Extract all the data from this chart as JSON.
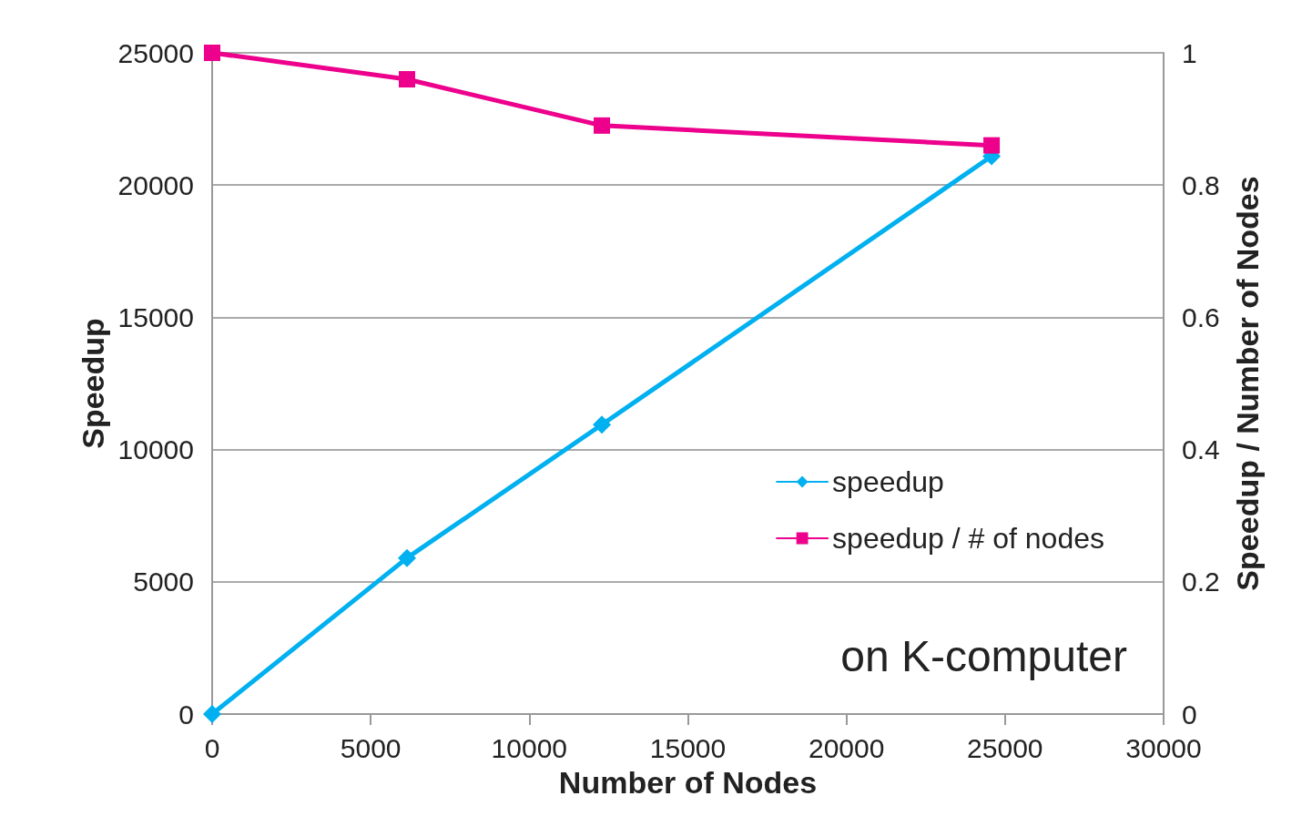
{
  "chart_data": {
    "type": "line",
    "xlabel": "Number of Nodes",
    "ylabel": "Speedup",
    "y2label": "Speedup / Number of Nodes",
    "x": [
      0,
      6144,
      12288,
      24576
    ],
    "series": [
      {
        "name": "speedup",
        "color": "#00b0f0",
        "marker": "diamond",
        "values": [
          0,
          5900,
          10940,
          21090
        ]
      },
      {
        "name": "speedup / # of nodes",
        "color": "#ec008c",
        "marker": "square",
        "axis": "y2",
        "values": [
          1,
          0.96,
          0.89,
          0.86
        ]
      }
    ],
    "xlim": [
      0,
      30000
    ],
    "xticks": [
      0,
      5000,
      10000,
      15000,
      20000,
      25000,
      30000
    ],
    "ylim": [
      0,
      25000
    ],
    "yticks": [
      0,
      5000,
      10000,
      15000,
      20000,
      25000
    ],
    "y2lim": [
      0,
      1
    ],
    "y2ticks": [
      0,
      0.2,
      0.4,
      0.6,
      0.8,
      1
    ],
    "grid": "y",
    "legend": "right",
    "line_style": "solid",
    "annotations": [
      "on K-computer"
    ]
  }
}
